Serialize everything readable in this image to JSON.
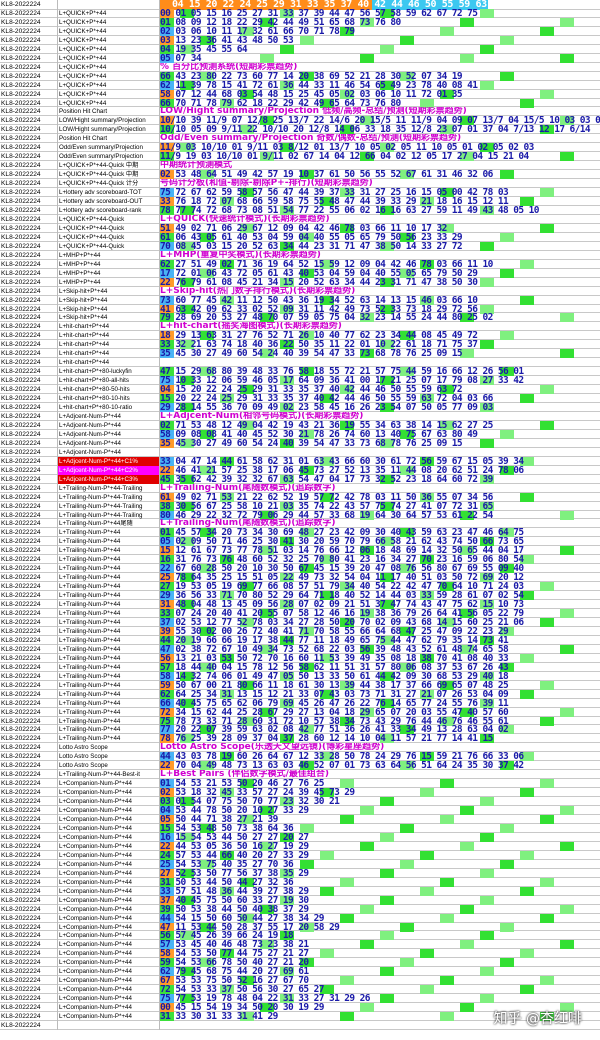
{
  "header": {
    "row_label": "KL8-2022224",
    "numbers": "04 15 20 22 24 25 29 31 33 35 37 40 42 44 46 50 55 59 63 72",
    "percents": "90%87%82%76%69%58%"
  },
  "sections": [
    {
      "title": "遗漏偏差追踪系统(短期彩票趋势)"
    },
    {
      "title": "% 百分比预测系统(短期彩票趋势)"
    },
    {
      "title": "LOW/Hight summary/Projection 低频/高频-总结/预测(短期彩票趋势)"
    },
    {
      "title": "Odd/Even summary/Projection 奇数/偶数-总结/预测(短期彩票趋势)"
    },
    {
      "title": "中期统计预测模式"
    },
    {
      "title": "号码计分板(和值-剔除-剔除P+-排行)(短期彩票趋势)"
    },
    {
      "title": "L+QUICK(快速统计模式)(长期彩票趋势)"
    },
    {
      "title": "L+MHP(重复中奖模式)(长期彩票趋势)"
    },
    {
      "title": "L+Skip-hit(热门数字排行模式)(长期彩票趋势)"
    },
    {
      "title": "L+hit-chart(摇奖海图模式)(长期彩票趋势)"
    },
    {
      "title": "L+Adjcent-Num(相邻号码模式)(长期彩票趋势)"
    },
    {
      "title": "L+Trailing-Num(尾随数模式)(追踪数字)"
    },
    {
      "title": "L+Trailing-Num(尾随数模式)(追踪数字)"
    },
    {
      "title": "Lotto Astro Scope(乐透天文望远镜)(博彩星座趋势)"
    },
    {
      "title": "L+Best Pairs (伴侣数字模式/最佳组合)"
    }
  ],
  "rows": [
    {
      "label": "KL8-2022224",
      "desc": "L+QUICK+P*+44",
      "cells": "00 01 05 15 16 25 27 31 33 37 39 44 47 56 57 58 59 62 67 72 75"
    },
    {
      "label": "KL8-2022224",
      "desc": "L+QUICK+P*+44",
      "cells": "01 08 09 12 18 22 29 42 44 49 51 65 68 73 76 80"
    },
    {
      "label": "KL8-2022224",
      "desc": "L+QUICK+P*+44",
      "cells": "02 03 06 10 11 17 32 61 66 70 71 78 79"
    },
    {
      "label": "KL8-2022224",
      "desc": "L+QUICK+P*+44",
      "cells": "03 13 23 36 41 43 48 50 53"
    },
    {
      "label": "KL8-2022224",
      "desc": "L+QUICK+P*+44",
      "cells": "04 19 35 45 55 64"
    },
    {
      "label": "KL8-2022224",
      "desc": "L+QUICK+P*+44",
      "cells": "05 07 34"
    },
    {
      "label": "KL8-2022224",
      "desc": "L+QUICK+P*+44",
      "cells": "% 百分比预测系统(短期彩票趋势)"
    },
    {
      "label": "KL8-2022224",
      "desc": "L+QUICK+P*+44",
      "cells": "66 43 23 80 22 73 60 77 14 20 38 69 52 21 28 30 52 07 34 19"
    },
    {
      "label": "KL8-2022224",
      "desc": "L+QUICK+P*+44",
      "cells": "62 11 39 78 15 41 72 61 36 44 33 11 46 54 65 49 23 78 40 08 41"
    },
    {
      "label": "KL8-2022224",
      "desc": "L+QUICK+P*+44",
      "cells": "58 07 12 44 68 03 54 48 15 25 45 05 02 03 06 10 11 72 01 35"
    },
    {
      "label": "KL8-2022224",
      "desc": "L+QUICK+P*+44",
      "cells": "66 70 71 78 79 62 18 22 29 42 49 65 64 73 76 80"
    },
    {
      "label": "KL8-2022224",
      "desc": "Position Hit Chart",
      "cells": "LOW/Hight summary/Projection 低频/高频-总结/预测(短期彩票趋势)"
    },
    {
      "label": "KL8-2022224",
      "desc": "LOW/Hight summary/Projection",
      "cells": "10/10 39 11/9 07 12/8 25 13/7 22 14/6 20 15/5 11 11/9 04 09 07 13/7 04 15/5 10 03 03 01"
    },
    {
      "label": "KL8-2022224",
      "desc": "LOW/Hight summary/Projection",
      "cells": "10/10 05 09 9/11 22 10/10 20 12/8 14 06 33 18 35 12/8 23 07 01 37 04 7/13 12 17 6/14"
    },
    {
      "label": "KL8-2022224",
      "desc": "Position Hit Chart",
      "cells": "Odd/Even summary/Projection 奇数/偶数-总结/预测(短期彩票趋势)"
    },
    {
      "label": "KL8-2022224",
      "desc": "Odd/Even summary/Projection",
      "cells": "11/9 03 10/10 01 9/11 03 8/12 01 13/7 10 05 02 05 11 10 05 01 02 05 02 03"
    },
    {
      "label": "KL8-2022224",
      "desc": "Odd/Even summary/Projection",
      "cells": "11/9 19 03 10/10 01 9/11 02 67 14 04 12 66 04 02 12 05 17 27 04 15 21 04"
    },
    {
      "label": "KL8-2022224",
      "desc": "L+QUICK+P*+44-Quick 中期",
      "cells": "中期统计预测模式"
    },
    {
      "label": "KL8-2022224",
      "desc": "L+QUICK+P*+44-Quick 中期",
      "cells": "02 53 48 64 51 49 42 57 19 10 37 61 50 56 55 52 67 61 31 46 32 06"
    },
    {
      "label": "KL8-2022224",
      "desc": "L+QUICK+P*+44-Quick 计分",
      "cells": "号码计分板(和值-剔除-剔除P+-排行)(短期彩票趋势)"
    },
    {
      "label": "KL8-2022224",
      "desc": "L+lottery adv scoreboard-TOT",
      "cells": "75 72 67 62 59 58 57 56 47 44 39 37 33 31 27 25 16 15 05 00 42 78 03"
    },
    {
      "label": "KL8-2022224",
      "desc": "L+lottery adv scoreboard-OUT",
      "cells": "33 76 18 72 07 68 66 59 58 75 55 48 47 44 39 33 29 21 18 16 15 12 11"
    },
    {
      "label": "KL8-2022224",
      "desc": "L+lottery adv scoreboard-rank",
      "cells": "78 77 74 72 68 73 08 51 54 77 22 55 06 02 16 16 63 27 59 11 49 43 48 05 10"
    },
    {
      "label": "KL8-2022224",
      "desc": "L+QUICK+P*+44-Quick",
      "cells": "L+QUICK(快速统计模式)(长期彩票趋势)"
    },
    {
      "label": "KL8-2022224",
      "desc": "L+QUICK+P*+44-Quick",
      "cells": "51 49 02 71 06 29 67 12 09 04 42 46 78 03 66 11 10 17 32"
    },
    {
      "label": "KL8-2022224",
      "desc": "L+QUICK+P*+44-Quick",
      "cells": "61 06 43 05 61 40 53 04 59 04 40 55 05 65 79 50 56 23 33 29"
    },
    {
      "label": "KL8-2022224",
      "desc": "L+QUICK+P*+44-Quick",
      "cells": "70 08 45 03 15 20 52 63 34 44 23 31 71 47 38 50 14 33 27 72"
    },
    {
      "label": "KL8-2022224",
      "desc": "L+MHP+P*+44",
      "cells": "L+MHP(重复中奖模式)(长期彩票趋势)"
    },
    {
      "label": "KL8-2022224",
      "desc": "L+MHP+P*+44",
      "cells": "62 27 51 49 02 71 36 19 64 52 15 59 12 09 04 42 46 78 03 66 11 10"
    },
    {
      "label": "KL8-2022224",
      "desc": "L+MHP+P*+44",
      "cells": "17 72 01 06 43 72 05 61 43 40 53 04 59 04 40 55 05 65 79 50 29"
    },
    {
      "label": "KL8-2022224",
      "desc": "L+MHP+P*+44",
      "cells": "22 76 79 61 08 45 21 34 15 20 52 63 34 44 23 31 71 47 38 50 30"
    },
    {
      "label": "KL8-2022224",
      "desc": "L+Skip-hit+P*+44",
      "cells": "L+Skip-hit(热门数字排行模式)(长期彩票趋势)"
    },
    {
      "label": "KL8-2022224",
      "desc": "L+Skip-hit+P*+44",
      "cells": "73 60 77 45 42 11 12 50 43 36 19 34 52 63 14 13 15 46 03 66 10"
    },
    {
      "label": "KL8-2022224",
      "desc": "L+Skip-hit+P*+44",
      "cells": "41 63 42 09 62 33 02 52 09 31 11 42 49 73 52 33 73 18 29 72 56"
    },
    {
      "label": "KL8-2022224",
      "desc": "L+Skip-hit+P*+44",
      "cells": "79 28 69 20 53 27 48 70 07 59 05 75 04 32 23 14 55 24 44 80 25 02"
    },
    {
      "label": "KL8-2022224",
      "desc": "L+hit-chart+P*+44",
      "cells": "L+hit-chart(摇奖海图模式)(长期彩票趋势)"
    },
    {
      "label": "KL8-2022224",
      "desc": "L+hit-chart+P*+44",
      "cells": "18 29 13 63 31 27 76 52 71 26 10 40 77 62 23 34 44 08 45 49 72"
    },
    {
      "label": "KL8-2022224",
      "desc": "L+hit-chart+P*+44",
      "cells": "33 32 21 63 74 18 40 36 22 50 35 11 22 01 10 22 61 18 71 75 37"
    },
    {
      "label": "KL8-2022224",
      "desc": "L+hit-chart+P*+44",
      "cells": "35 45 30 27 49 60 54 24 40 39 54 47 33 73 68 78 76 25 09 15"
    },
    {
      "label": "KL8-2022224",
      "desc": "L+hit-chart+P*+44",
      "cells": ""
    },
    {
      "label": "KL8-2022224",
      "desc": "L+hit-chart+P*+80-luckyfin",
      "cells": "47 15 29 68 80 39 48 33 76 58 18 55 72 21 57 75 44 59 16 66 12 26 56 01"
    },
    {
      "label": "KL8-2022224",
      "desc": "L+hit-chart+P*+80-all-hits",
      "cells": "75 10 33 12 06 59 46 05 17 64 09 36 41 00 17 21 25 07 17 79 08 27 33 42"
    },
    {
      "label": "KL8-2022224",
      "desc": "L+hit-chart+P*+80-50-hits",
      "cells": "04 15 20 22 24 25 29 31 33 35 37 40 42 44 46 50 55 59 63 72"
    },
    {
      "label": "KL8-2022224",
      "desc": "L+hit-chart+P*+80-10-hits",
      "cells": "15 20 22 24 25 29 31 33 35 37 40 42 44 46 50 55 59 63 72 04 03 66"
    },
    {
      "label": "KL8-2022224",
      "desc": "L+hit-chart+P*+80-10-ratio",
      "cells": "29 28 14 55 36 70 09 49 02 23 58 45 16 26 23 54 07 50 05 77 09 03"
    },
    {
      "label": "KL8-2022224",
      "desc": "L+Adjcent-Num-P*+44",
      "cells": "L+Adjcent-Num(相邻号码模式)(长期彩票趋势)"
    },
    {
      "label": "KL8-2022224",
      "desc": "L+Adjcent-Num-P*+44",
      "cells": "02 71 53 48 12 49 04 42 19 43 21 36 19 55 34 63 38 14 15 62 27 25"
    },
    {
      "label": "KL8-2022224",
      "desc": "L+Adjcent-Num-P*+44",
      "cells": "58 09 08 08 41 40 45 52 30 21 78 26 74 60 13 40 75 67 63 80 49"
    },
    {
      "label": "KL8-2022224",
      "desc": "L+Adjcent-Num-P*+44",
      "cells": "35 45 30 27 49 60 54 24 40 39 54 47 33 73 68 78 76 25 09 15"
    },
    {
      "label": "KL8-2022224",
      "desc": "L+Adjcent-Num-P*+44",
      "cells": ""
    },
    {
      "label": "KL8-2022224",
      "desc": "L+Adjcent-Num-P*+44+C1%",
      "cells": "33 04 47 14 44 61 58 62 31 01 63 43 66 60 30 61 72 56 59 67 15 05 39 34"
    },
    {
      "label": "KL8-2022224",
      "desc": "L+Adjcent-Num-P*+44+C2%",
      "cells": "22 46 41 21 57 25 38 17 06 45 73 27 52 13 35 11 44 08 20 62 51 24 78 06"
    },
    {
      "label": "KL8-2022224",
      "desc": "L+Adjcent-Num-P*+44+C3%",
      "cells": "45 35 62 42 39 32 32 67 63 54 47 04 17 73 32 52 23 18 64 60 72 39"
    },
    {
      "label": "KL8-2022224",
      "desc": "L+Trailing-Num-P*+44-Trailing",
      "cells": "L+Trailing-Num(尾随数模式)(追踪数字)"
    },
    {
      "label": "KL8-2022224",
      "desc": "L+Trailing-Num-P*+44-Trailing",
      "cells": "61 49 02 71 53 21 22 62 52 19 57 72 42 78 03 11 50 36 55 07 34 56"
    },
    {
      "label": "KL8-2022224",
      "desc": "L+Trailing-Num-P*+44-Trailing",
      "cells": "38 30 56 67 25 58 10 21 03 35 74 22 43 57 75 74 27 41 07 72 31 65"
    },
    {
      "label": "KL8-2022224",
      "desc": "L+Trailing-Num-P*+44-Trailing",
      "cells": "80 46 29 22 32 72 79 06 29 44 57 33 68 19 64 30 64 57 53 61 22 54"
    },
    {
      "label": "KL8-2022224",
      "desc": "L+Trailing-Num-P*+44尾随",
      "cells": "L+Trailing-Num(尾随数模式)(追踪数字)"
    },
    {
      "label": "KL8-2022224",
      "desc": "L+Trailing-Num-P*+44",
      "cells": "01 45 57 34 20 73 34 30 69 48 27 23 42 09 30 40 43 59 63 23 47 46 64 75"
    },
    {
      "label": "KL8-2022224",
      "desc": "L+Trailing-Num-P*+44",
      "cells": "05 02 09 50 71 46 25 30 41 30 20 59 70 79 66 58 21 62 43 74 50 66 73 65"
    },
    {
      "label": "KL8-2022224",
      "desc": "L+Trailing-Num-P*+44",
      "cells": "15 12 61 67 73 77 78 51 03 14 76 66 12 06 18 48 69 14 32 50 65 44 04 17"
    },
    {
      "label": "KL8-2022224",
      "desc": "L+Trailing-Num-P*+44",
      "cells": "16 31 76 73 76 48 60 52 32 25 70 80 41 23 16 34 27 70 23 16 59 06 80 54"
    },
    {
      "label": "KL8-2022224",
      "desc": "L+Trailing-Num-P*+44",
      "cells": "22 67 60 28 50 20 10 30 50 67 45 15 39 20 47 08 76 56 80 67 69 55 09 40"
    },
    {
      "label": "KL8-2022224",
      "desc": "L+Trailing-Num-P*+44",
      "cells": "25 78 64 35 25 15 51 05 22 49 73 32 54 04 11 17 40 51 03 50 72 69 20 12"
    },
    {
      "label": "KL8-2022224",
      "desc": "L+Trailing-Num-P*+44",
      "cells": "27 19 53 05 19 69 77 66 08 57 51 79 34 40 54 22 42 47 70 64 10 71 24 03"
    },
    {
      "label": "KL8-2022224",
      "desc": "L+Trailing-Num-P*+44",
      "cells": "29 36 56 33 71 70 80 52 29 64 71 18 40 52 14 44 03 33 59 28 61 07 02 54"
    },
    {
      "label": "KL8-2022224",
      "desc": "L+Trailing-Num-P*+44",
      "cells": "31 48 04 48 13 45 09 56 28 07 02 09 21 51 37 47 74 43 47 75 62 15 10 73"
    },
    {
      "label": "KL8-2022224",
      "desc": "L+Trailing-Num-P*+44",
      "cells": "33 07 24 20 40 41 20 55 07 58 12 46 16 19 38 36 79 26 64 41 56 05 22 79"
    },
    {
      "label": "KL8-2022224",
      "desc": "L+Trailing-Num-P*+44",
      "cells": "37 02 53 12 77 52 78 03 34 27 28 50 20 70 02 09 43 68 14 15 60 25 21 06"
    },
    {
      "label": "KL8-2022224",
      "desc": "L+Trailing-Num-P*+44",
      "cells": "39 55 30 02 00 26 72 40 41 71 70 58 55 66 64 68 47 25 47 09 22 23 29"
    },
    {
      "label": "KL8-2022224",
      "desc": "L+Trailing-Num-P*+44",
      "cells": "44 20 19 66 66 19 17 38 44 77 11 18 49 65 75 44 47 62 79 35 14 73 41"
    },
    {
      "label": "KL8-2022224",
      "desc": "L+Trailing-Num-P*+44",
      "cells": "47 02 38 72 67 10 49 34 73 52 68 22 03 56 39 48 43 52 61 48 74 65 58"
    },
    {
      "label": "KL8-2022224",
      "desc": "L+Trailing-Num-P*+44",
      "cells": "56 13 21 03 53 50 72 70 16 60 11 53 39 49 35 08 18 38 70 41 08 40 33"
    },
    {
      "label": "KL8-2022224",
      "desc": "L+Trailing-Num-P*+44",
      "cells": "57 18 44 40 04 15 78 12 56 58 62 11 51 31 57 80 06 08 37 53 67 26 43"
    },
    {
      "label": "KL8-2022224",
      "desc": "L+Trailing-Num-P*+44",
      "cells": "58 14 32 74 06 01 49 47 05 50 13 33 50 61 44 42 09 30 68 53 29 40 18"
    },
    {
      "label": "KL8-2022224",
      "desc": "L+Trailing-Num-P*+44",
      "cells": "59 50 67 00 21 80 66 11 18 61 30 13 39 44 38 17 37 66 69 65 07 48 25"
    },
    {
      "label": "KL8-2022224",
      "desc": "L+Trailing-Num-P*+44",
      "cells": "62 64 25 34 31 13 15 12 21 33 07 43 03 73 71 31 27 21 07 26 53 04 09"
    },
    {
      "label": "KL8-2022224",
      "desc": "L+Trailing-Num-P*+44",
      "cells": "66 40 45 75 65 62 06 79 69 45 26 47 26 22 76 14 65 77 24 55 76 39 11"
    },
    {
      "label": "KL8-2022224",
      "desc": "L+Trailing-Num-P*+44",
      "cells": "72 34 15 62 44 25 28 67 29 27 13 04 18 29 65 07 20 03 55 47 40 57 60"
    },
    {
      "label": "KL8-2022224",
      "desc": "L+Trailing-Num-P*+44",
      "cells": "75 78 73 33 71 28 60 31 72 10 57 38 34 73 43 29 76 44 46 76 46 55 61"
    },
    {
      "label": "KL8-2022224",
      "desc": "L+Trailing-Num-P*+44",
      "cells": "77 20 22 07 39 59 63 02 08 42 77 51 36 26 41 33 34 49 13 28 63 04 02"
    },
    {
      "label": "KL8-2022224",
      "desc": "L+Trailing-Num-P*+44",
      "cells": "78 76 25 39 28 09 37 04 37 28 60 12 14 10 04 11 57 21 77 14 41 15"
    },
    {
      "label": "KL8-2022224",
      "desc": "Lotto Astro Scope",
      "cells": "Lotto Astro Scope(乐透天文望远镜)(博彩星座趋势)"
    },
    {
      "label": "KL8-2022224",
      "desc": "Lotto Astro Scope",
      "cells": "44 43 03 78 19 60 26 64 67 12 33 28 50 78 24 29 76 15 59 21 76 66 33 06"
    },
    {
      "label": "KL8-2022224",
      "desc": "Lotto Astro Scope",
      "cells": "22 70 04 49 48 73 13 63 03 46 52 07 01 73 63 64 56 51 64 24 35 30 37 42"
    },
    {
      "label": "KL8-2022224",
      "desc": "L+Trailing-Num-P*+44-Best-it",
      "cells": "L+Best Pairs (伴侣数字模式/最佳组合)"
    },
    {
      "label": "KL8-2022224",
      "desc": "L+Companion-Num-P*+44",
      "cells": "01 54          53    21 53       50    20 46          27    76    25"
    },
    {
      "label": "KL8-2022224",
      "desc": "L+Companion-Num-P*+44",
      "cells": "02             53    18 32       45    33 57          27    24 39 45 73 29"
    },
    {
      "label": "KL8-2022224",
      "desc": "L+Companion-Num-P*+44",
      "cells": "03 01          54    07 75       50    70 77          23    32 30       21"
    },
    {
      "label": "KL8-2022224",
      "desc": "L+Companion-Num-P*+44",
      "cells": "04             53    44 78       50    20 10          27    33          29"
    },
    {
      "label": "KL8-2022224",
      "desc": "L+Companion-Num-P*+44",
      "cells": "05 50          44             71    38             27    21          39"
    },
    {
      "label": "KL8-2022224",
      "desc": "L+Companion-Num-P*+44",
      "cells": "15 54          53    48          50    73             38    64          36"
    },
    {
      "label": "KL8-2022224",
      "desc": "L+Companion-Num-P*+44",
      "cells": "16 15 54       53    44          50    27             27    20          27"
    },
    {
      "label": "KL8-2022224",
      "desc": "L+Companion-Num-P*+44",
      "cells": "22 44          53    05 36       50    16             27    19          29"
    },
    {
      "label": "KL8-2022224",
      "desc": "L+Companion-Num-P*+44",
      "cells": "24 57          53    44 66       40    20             27    33          29"
    },
    {
      "label": "KL8-2022224",
      "desc": "L+Companion-Num-P*+44",
      "cells": "25 54          53    75          40    35             27    70          36"
    },
    {
      "label": "KL8-2022224",
      "desc": "L+Companion-Num-P*+44",
      "cells": "27 52          53    50 77       56    37             38    35          29"
    },
    {
      "label": "KL8-2022224",
      "desc": "L+Companion-Num-P*+44",
      "cells": "31 50          53    44          50    44             27    32          36"
    },
    {
      "label": "KL8-2022224",
      "desc": "L+Companion-Num-P*+44",
      "cells": "33 57          51    48 36       44    39             27    38          29"
    },
    {
      "label": "KL8-2022224",
      "desc": "L+Companion-Num-P*+44",
      "cells": "37 40          45    75          50    60 33          27    19          30"
    },
    {
      "label": "KL8-2022224",
      "desc": "L+Companion-Num-P*+44",
      "cells": "39 50          53    38 44       50    40             38    37          29"
    },
    {
      "label": "KL8-2022224",
      "desc": "L+Companion-Num-P*+44",
      "cells": "44 54 15       50    60          50    44             27    38 34       29"
    },
    {
      "label": "KL8-2022224",
      "desc": "L+Companion-Num-P*+44",
      "cells": "47 11          53    44          50    28 37 55       17    20 58       29"
    },
    {
      "label": "KL8-2022224",
      "desc": "L+Companion-Num-P*+44",
      "cells": "56 57          45    26          39    66             24    19          18"
    },
    {
      "label": "KL8-2022224",
      "desc": "L+Companion-Num-P*+44",
      "cells": "57 53          45    40 46       48    73             23    38          21"
    },
    {
      "label": "KL8-2022224",
      "desc": "L+Companion-Num-P*+44",
      "cells": "58 54          53    50 77       44    75             27    21          27"
    },
    {
      "label": "KL8-2022224",
      "desc": "L+Companion-Num-P*+44",
      "cells": "59 54          53    66 78       50    40             27    21          20"
    },
    {
      "label": "KL8-2022224",
      "desc": "L+Companion-Num-P*+44",
      "cells": "62 79          45    68 75       44    20             27    69          61"
    },
    {
      "label": "KL8-2022224",
      "desc": "L+Companion-Num-P*+44",
      "cells": "67 53          53    75          50    52 16          27    67          70"
    },
    {
      "label": "KL8-2022224",
      "desc": "L+Companion-Num-P*+44",
      "cells": "72 54          53    33 37       50    56 30          27    65          27"
    },
    {
      "label": "KL8-2022224",
      "desc": "L+Companion-Num-P*+44",
      "cells": "75 77          53    19 78       48    04 22 31 33    27 31 29       26"
    },
    {
      "label": "KL8-2022224",
      "desc": "L+Companion-Num-P*+44",
      "cells": "00 45 15       54    19 34       50    20             30    19          29"
    },
    {
      "label": "KL8-2022224",
      "desc": "L+Companion-Num-P*+44",
      "cells": "                     31 33       30    31 33          31    41          29"
    },
    {
      "label": "KL8-2022224",
      "desc": "",
      "cells": ""
    }
  ],
  "watermark": "知乎 @杏红啡"
}
